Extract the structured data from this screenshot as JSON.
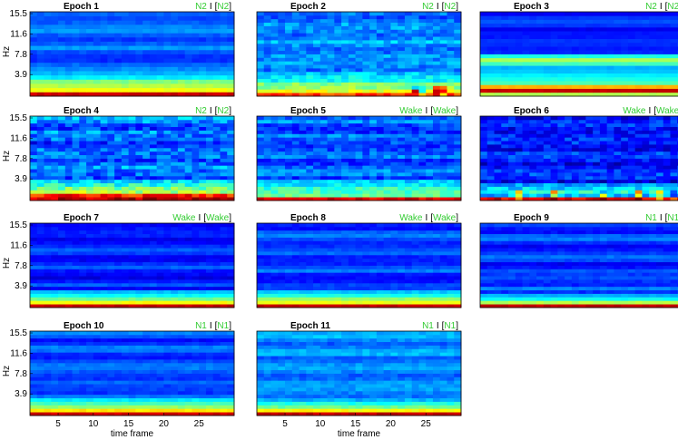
{
  "chart_data": {
    "type": "heatmap",
    "colormap": "jet",
    "xlabel": "time frame",
    "ylabel": "Hz",
    "yticks": [
      "15.5",
      "11.6",
      "7.8",
      "3.9"
    ],
    "xticks": [
      "5",
      "10",
      "15",
      "20",
      "25"
    ],
    "x_range": [
      1,
      30
    ],
    "y_range_hz": [
      0,
      15.5
    ],
    "colors": {
      "label_color": "#33cc33",
      "bracket_color": "#000000"
    },
    "panels": [
      {
        "title": "Epoch 1",
        "pred": "N2",
        "truth": "N2",
        "sep": "I",
        "open": "[",
        "close": "]"
      },
      {
        "title": "Epoch 2",
        "pred": "N2",
        "truth": "N2",
        "sep": "I",
        "open": "[",
        "close": "]"
      },
      {
        "title": "Epoch 3",
        "pred": "N2",
        "truth": "N2",
        "sep": "I",
        "open": "[",
        "close": "]"
      },
      {
        "title": "Epoch 4",
        "pred": "N2",
        "truth": "N2",
        "sep": "I",
        "open": "[",
        "close": "]"
      },
      {
        "title": "Epoch 5",
        "pred": "Wake",
        "truth": "Wake",
        "sep": "I",
        "open": "[",
        "close": "]"
      },
      {
        "title": "Epoch 6",
        "pred": "Wake",
        "truth": "Wake",
        "sep": "I",
        "open": "[",
        "close": "]"
      },
      {
        "title": "Epoch 7",
        "pred": "Wake",
        "truth": "Wake",
        "sep": "I",
        "open": "[",
        "close": "]"
      },
      {
        "title": "Epoch 8",
        "pred": "Wake",
        "truth": "Wake",
        "sep": "I",
        "open": "[",
        "close": "]"
      },
      {
        "title": "Epoch 9",
        "pred": "N1",
        "truth": "N1",
        "sep": "I",
        "open": "[",
        "close": "]"
      },
      {
        "title": "Epoch 10",
        "pred": "N1",
        "truth": "N1",
        "sep": "I",
        "open": "[",
        "close": "]"
      },
      {
        "title": "Epoch 11",
        "pred": "N1",
        "truth": "N1",
        "sep": "I",
        "open": "[",
        "close": "]"
      }
    ]
  }
}
